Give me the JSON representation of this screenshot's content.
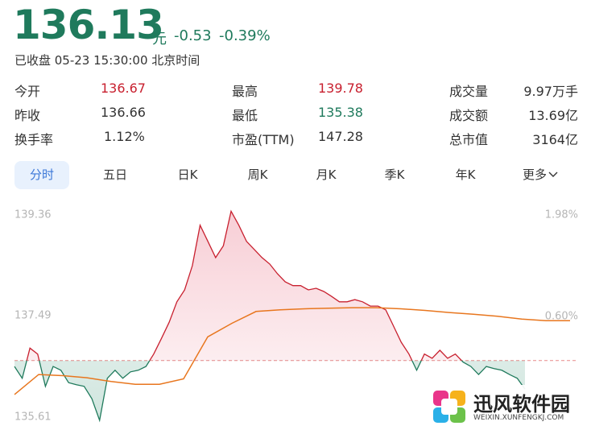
{
  "header": {
    "price": "136.13",
    "unit": "元",
    "change": "-0.53",
    "change_pct": "-0.39%",
    "status": "已收盘 05-23 15:30:00 北京时间"
  },
  "stats": [
    [
      "今开",
      "136.67"
    ],
    [
      "最高",
      "139.78"
    ],
    [
      "成交量",
      "9.97万手"
    ],
    [
      "昨收",
      "136.66"
    ],
    [
      "最低",
      "135.38"
    ],
    [
      "成交额",
      "13.69亿"
    ],
    [
      "换手率",
      "1.12%"
    ],
    [
      "市盈(TTM)",
      "147.28"
    ],
    [
      "总市值",
      "3164亿"
    ]
  ],
  "tabs": [
    "分时",
    "五日",
    "日K",
    "周K",
    "月K",
    "季K",
    "年K",
    "更多"
  ],
  "watermark": {
    "title": "迅风软件园",
    "url": "WEIXIN.XUNFENGKJ.COM"
  },
  "chart_data": {
    "type": "line",
    "ylim": [
      135.61,
      139.36
    ],
    "yticks": [
      135.61,
      137.49,
      139.36
    ],
    "y2lim": [
      -0.77,
      1.98
    ],
    "y2ticks": [
      {
        "value": 0.6,
        "label": "0.60%"
      },
      {
        "value": 1.98,
        "label": "1.98%"
      }
    ],
    "series": [
      {
        "name": "price",
        "color": "#c8202f",
        "color_below": "#1f7a5c",
        "values": [
          136.55,
          136.33,
          136.89,
          136.78,
          136.18,
          136.55,
          136.48,
          136.25,
          136.21,
          136.18,
          135.95,
          135.55,
          136.33,
          136.48,
          136.33,
          136.45,
          136.48,
          136.55,
          136.78,
          137.07,
          137.37,
          137.75,
          137.97,
          138.42,
          139.17,
          138.87,
          138.57,
          138.79,
          139.43,
          139.17,
          138.87,
          138.72,
          138.57,
          138.45,
          138.27,
          138.12,
          138.05,
          138.05,
          137.97,
          138.0,
          137.94,
          137.85,
          137.75,
          137.75,
          137.79,
          137.75,
          137.67,
          137.67,
          137.6,
          137.3,
          137.0,
          136.78,
          136.48,
          136.78,
          136.7,
          136.85,
          136.7,
          136.78,
          136.63,
          136.55,
          136.4,
          136.55,
          136.51,
          136.48,
          136.4,
          136.33,
          136.13
        ]
      },
      {
        "name": "average",
        "color": "#e8761e",
        "values": [
          136.03,
          136.4,
          136.38,
          136.34,
          136.27,
          136.22,
          136.22,
          136.32,
          137.1,
          137.35,
          137.57,
          137.6,
          137.62,
          137.63,
          137.64,
          137.64,
          137.62,
          137.59,
          137.55,
          137.52,
          137.48,
          137.43,
          137.4,
          137.4
        ]
      }
    ]
  }
}
